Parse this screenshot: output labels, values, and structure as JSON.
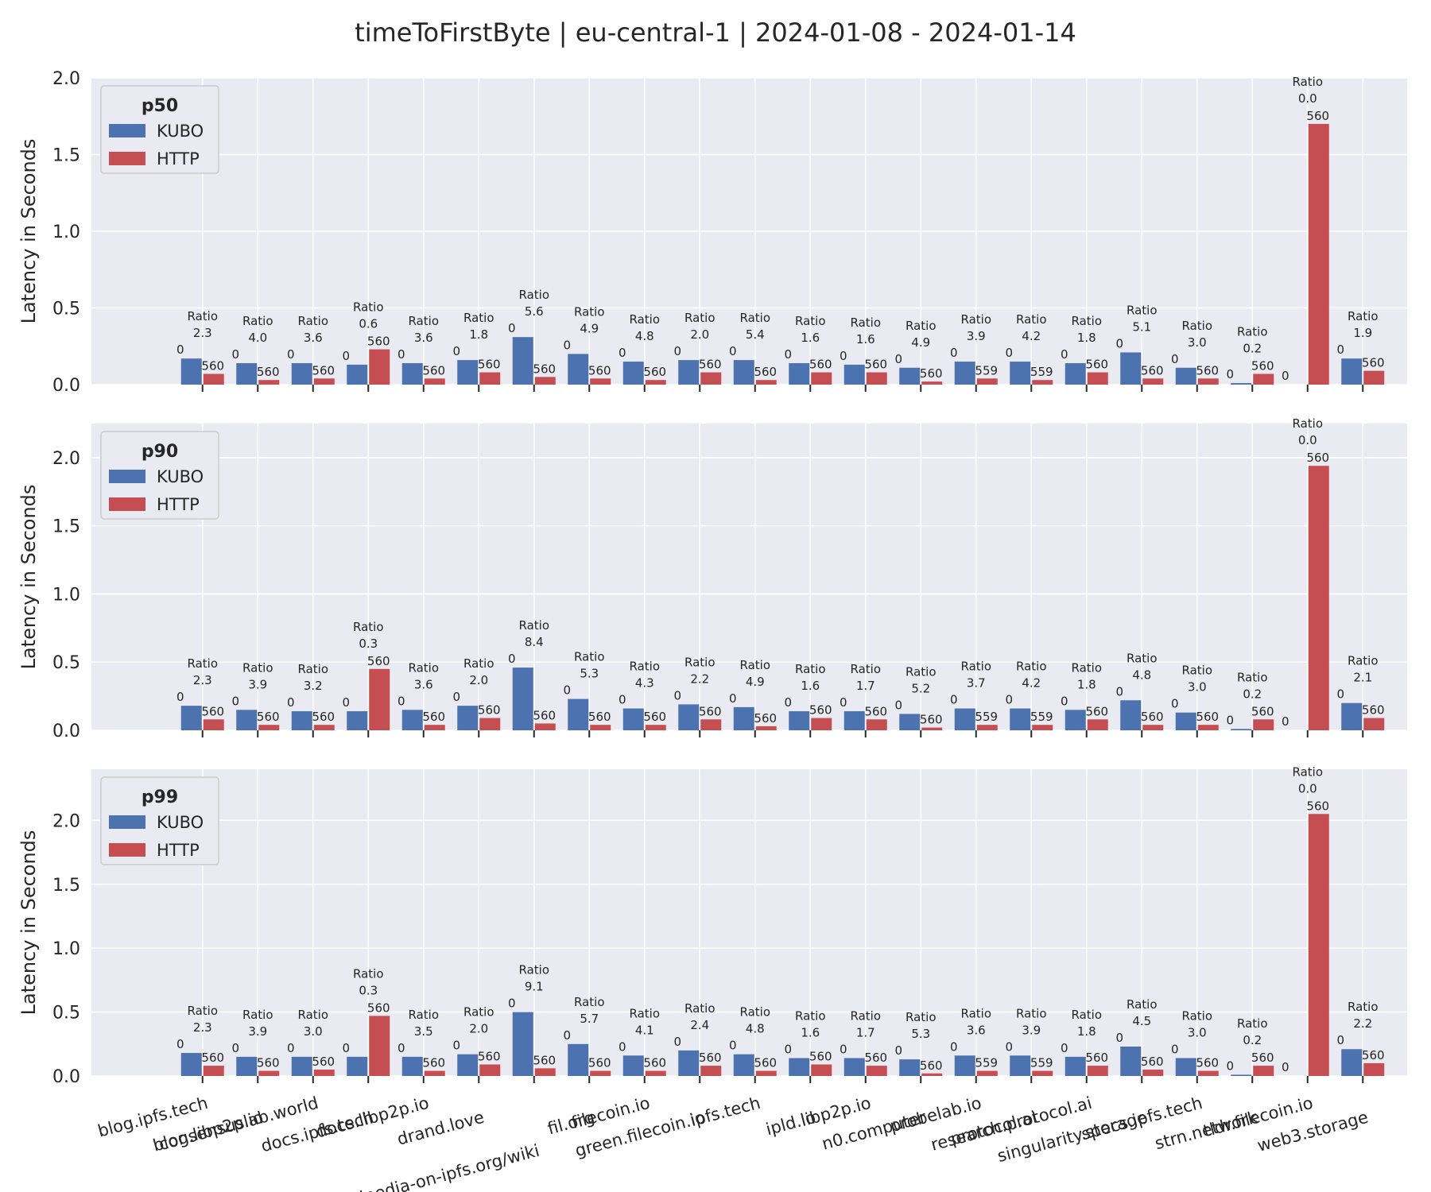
{
  "title": "timeToFirstByte | eu-central-1 | 2024-01-08 - 2024-01-14",
  "colors": {
    "kubo": "#4c72b0",
    "http": "#c44e52",
    "panel_bg": "#eaeaf2",
    "grid": "#ffffff",
    "text": "#262626"
  },
  "chart_data": [
    {
      "type": "bar",
      "legend_title": "p50",
      "legend_placement": "top-left",
      "ylabel": "Latency in Seconds",
      "ylim": [
        0,
        2.0
      ],
      "yticks": [
        0.0,
        0.5,
        1.0,
        1.5,
        2.0
      ],
      "grid": true,
      "categories": [
        "blog.ipfs.tech",
        "blog.libp2p.io",
        "consensuslab.world",
        "docs.ipfs.tech",
        "docs.libp2p.io",
        "drand.love",
        "en.wikipedia-on-ipfs.org/wiki",
        "fil.org",
        "filecoin.io",
        "green.filecoin.io",
        "ipfs.tech",
        "ipld.io",
        "libp2p.io",
        "n0.computer",
        "probelab.io",
        "protocol.ai",
        "research.protocol.ai",
        "singularity.storage",
        "specs.ipfs.tech",
        "strn.network",
        "tldr.filecoin.io",
        "web3.storage"
      ],
      "series": [
        {
          "name": "KUBO",
          "values": [
            0.17,
            0.14,
            0.14,
            0.13,
            0.14,
            0.16,
            0.31,
            0.2,
            0.15,
            0.16,
            0.16,
            0.14,
            0.13,
            0.11,
            0.15,
            0.15,
            0.14,
            0.21,
            0.11,
            0.01,
            0.0,
            0.17
          ],
          "counts": [
            "0",
            "0",
            "0",
            "0",
            "0",
            "0",
            "0",
            "0",
            "0",
            "0",
            "0",
            "0",
            "0",
            "0",
            "0",
            "0",
            "0",
            "0",
            "0",
            "0",
            "0",
            "0"
          ]
        },
        {
          "name": "HTTP",
          "values": [
            0.07,
            0.03,
            0.04,
            0.23,
            0.04,
            0.08,
            0.05,
            0.04,
            0.03,
            0.08,
            0.03,
            0.08,
            0.08,
            0.02,
            0.04,
            0.03,
            0.08,
            0.04,
            0.04,
            0.07,
            1.7,
            0.09
          ],
          "counts": [
            "560",
            "560",
            "560",
            "560",
            "560",
            "560",
            "560",
            "560",
            "560",
            "560",
            "560",
            "560",
            "560",
            "560",
            "559",
            "559",
            "560",
            "560",
            "560",
            "560",
            "560",
            "560"
          ]
        }
      ],
      "ratio_label": "Ratio",
      "ratios": [
        "2.3",
        "4.0",
        "3.6",
        "0.6",
        "3.6",
        "1.8",
        "5.6",
        "4.9",
        "4.8",
        "2.0",
        "5.4",
        "1.6",
        "1.6",
        "4.9",
        "3.9",
        "4.2",
        "1.8",
        "5.1",
        "3.0",
        "0.2",
        "0.0",
        "1.9"
      ]
    },
    {
      "type": "bar",
      "legend_title": "p90",
      "legend_placement": "top-left",
      "ylabel": "Latency in Seconds",
      "ylim": [
        0,
        2.25
      ],
      "yticks": [
        0.0,
        0.5,
        1.0,
        1.5,
        2.0
      ],
      "grid": true,
      "categories": [
        "blog.ipfs.tech",
        "blog.libp2p.io",
        "consensuslab.world",
        "docs.ipfs.tech",
        "docs.libp2p.io",
        "drand.love",
        "en.wikipedia-on-ipfs.org/wiki",
        "fil.org",
        "filecoin.io",
        "green.filecoin.io",
        "ipfs.tech",
        "ipld.io",
        "libp2p.io",
        "n0.computer",
        "probelab.io",
        "protocol.ai",
        "research.protocol.ai",
        "singularity.storage",
        "specs.ipfs.tech",
        "strn.network",
        "tldr.filecoin.io",
        "web3.storage"
      ],
      "series": [
        {
          "name": "KUBO",
          "values": [
            0.18,
            0.15,
            0.14,
            0.14,
            0.15,
            0.18,
            0.46,
            0.23,
            0.16,
            0.19,
            0.17,
            0.14,
            0.14,
            0.12,
            0.16,
            0.16,
            0.15,
            0.22,
            0.13,
            0.01,
            0.0,
            0.2
          ],
          "counts": [
            "0",
            "0",
            "0",
            "0",
            "0",
            "0",
            "0",
            "0",
            "0",
            "0",
            "0",
            "0",
            "0",
            "0",
            "0",
            "0",
            "0",
            "0",
            "0",
            "0",
            "0",
            "0"
          ]
        },
        {
          "name": "HTTP",
          "values": [
            0.08,
            0.04,
            0.04,
            0.45,
            0.04,
            0.09,
            0.05,
            0.04,
            0.04,
            0.08,
            0.03,
            0.09,
            0.08,
            0.02,
            0.04,
            0.04,
            0.08,
            0.04,
            0.04,
            0.08,
            1.94,
            0.09
          ],
          "counts": [
            "560",
            "560",
            "560",
            "560",
            "560",
            "560",
            "560",
            "560",
            "560",
            "560",
            "560",
            "560",
            "560",
            "560",
            "559",
            "559",
            "560",
            "560",
            "560",
            "560",
            "560",
            "560"
          ]
        }
      ],
      "ratio_label": "Ratio",
      "ratios": [
        "2.3",
        "3.9",
        "3.2",
        "0.3",
        "3.6",
        "2.0",
        "8.4",
        "5.3",
        "4.3",
        "2.2",
        "4.9",
        "1.6",
        "1.7",
        "5.2",
        "3.7",
        "4.2",
        "1.8",
        "4.8",
        "3.0",
        "0.2",
        "0.0",
        "2.1"
      ]
    },
    {
      "type": "bar",
      "legend_title": "p99",
      "legend_placement": "top-left",
      "ylabel": "Latency in Seconds",
      "ylim": [
        0,
        2.4
      ],
      "yticks": [
        0.0,
        0.5,
        1.0,
        1.5,
        2.0
      ],
      "grid": true,
      "categories": [
        "blog.ipfs.tech",
        "blog.libp2p.io",
        "consensuslab.world",
        "docs.ipfs.tech",
        "docs.libp2p.io",
        "drand.love",
        "en.wikipedia-on-ipfs.org/wiki",
        "fil.org",
        "filecoin.io",
        "green.filecoin.io",
        "ipfs.tech",
        "ipld.io",
        "libp2p.io",
        "n0.computer",
        "probelab.io",
        "protocol.ai",
        "research.protocol.ai",
        "singularity.storage",
        "specs.ipfs.tech",
        "strn.network",
        "tldr.filecoin.io",
        "web3.storage"
      ],
      "series": [
        {
          "name": "KUBO",
          "values": [
            0.18,
            0.15,
            0.15,
            0.15,
            0.15,
            0.17,
            0.5,
            0.25,
            0.16,
            0.2,
            0.17,
            0.14,
            0.14,
            0.13,
            0.16,
            0.16,
            0.15,
            0.23,
            0.14,
            0.01,
            0.0,
            0.21
          ],
          "counts": [
            "0",
            "0",
            "0",
            "0",
            "0",
            "0",
            "0",
            "0",
            "0",
            "0",
            "0",
            "0",
            "0",
            "0",
            "0",
            "0",
            "0",
            "0",
            "0",
            "0",
            "0",
            "0"
          ]
        },
        {
          "name": "HTTP",
          "values": [
            0.08,
            0.04,
            0.05,
            0.47,
            0.04,
            0.09,
            0.06,
            0.04,
            0.04,
            0.08,
            0.04,
            0.09,
            0.08,
            0.02,
            0.04,
            0.04,
            0.08,
            0.05,
            0.04,
            0.08,
            2.05,
            0.1
          ],
          "counts": [
            "560",
            "560",
            "560",
            "560",
            "560",
            "560",
            "560",
            "560",
            "560",
            "560",
            "560",
            "560",
            "560",
            "560",
            "559",
            "559",
            "560",
            "560",
            "560",
            "560",
            "560",
            "560"
          ]
        }
      ],
      "ratio_label": "Ratio",
      "ratios": [
        "2.3",
        "3.9",
        "3.0",
        "0.3",
        "3.5",
        "2.0",
        "9.1",
        "5.7",
        "4.1",
        "2.4",
        "4.8",
        "1.6",
        "1.7",
        "5.3",
        "3.6",
        "3.9",
        "1.8",
        "4.5",
        "3.0",
        "0.2",
        "0.0",
        "2.2"
      ]
    }
  ]
}
